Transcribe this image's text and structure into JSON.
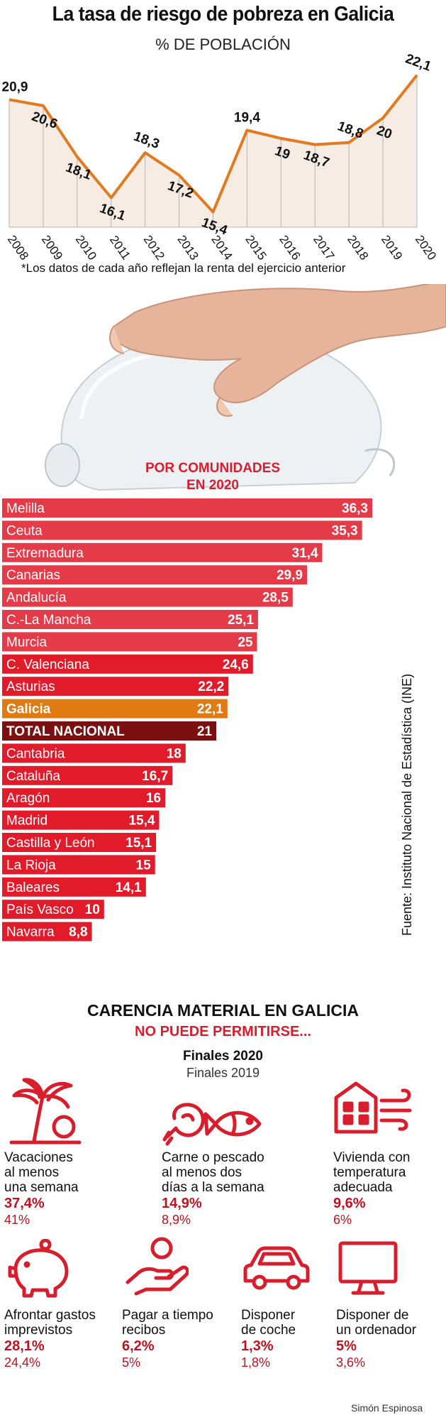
{
  "header": {
    "title": "La tasa de riesgo de pobreza en Galicia",
    "subtitle": "% DE POBLACIÓN",
    "note": "*Los datos de cada año reflejan la renta del ejercicio anterior"
  },
  "chart_data": [
    {
      "type": "line",
      "title": "La tasa de riesgo de pobreza en Galicia",
      "subtitle": "% DE POBLACIÓN",
      "x": [
        "2008",
        "2009",
        "2010",
        "2011",
        "2012",
        "2013",
        "2014",
        "2015",
        "2016",
        "2017",
        "2018",
        "2019",
        "2020"
      ],
      "values": [
        20.9,
        20.6,
        18.1,
        16.1,
        18.3,
        17.2,
        15.4,
        19.4,
        19,
        18.7,
        18.8,
        20,
        22.1
      ],
      "value_labels": [
        "20,9",
        "20,6",
        "18,1",
        "16,1",
        "18,3",
        "17,2",
        "15,4",
        "19,4",
        "19",
        "18,7",
        "18,8",
        "20",
        "22,1"
      ],
      "color": "#e27a1f"
    },
    {
      "type": "bar",
      "title": "POR COMUNIDADES EN 2020",
      "title_lines": [
        "POR COMUNIDADES",
        "EN 2020"
      ],
      "categories": [
        "Melilla",
        "Ceuta",
        "Extremadura",
        "Canarias",
        "Andalucía",
        "C.-La Mancha",
        "Murcia",
        "C. Valenciana",
        "Asturias",
        "Galicia",
        "TOTAL NACIONAL",
        "Cantabria",
        "Cataluña",
        "Aragón",
        "Madrid",
        "Castilla y León",
        "La Rioja",
        "Baleares",
        "País Vasco",
        "Navarra"
      ],
      "values": [
        36.3,
        35.3,
        31.4,
        29.9,
        28.5,
        25.1,
        25,
        24.6,
        22.2,
        22.1,
        21,
        18,
        16.7,
        16,
        15.4,
        15.1,
        15,
        14.1,
        10,
        8.8
      ],
      "value_labels": [
        "36,3",
        "35,3",
        "31,4",
        "29,9",
        "28,5",
        "25,1",
        "25",
        "24,6",
        "22,2",
        "22,1",
        "21",
        "18",
        "16,7",
        "16",
        "15,4",
        "15,1",
        "15",
        "14,1",
        "10",
        "8,8"
      ],
      "colors": {
        "default": "#e11b2a",
        "highlight": "#e07a12",
        "total": "#7a1010"
      },
      "highlight_category": "Galicia",
      "total_category": "TOTAL NACIONAL",
      "xlim": [
        0,
        36.3
      ]
    }
  ],
  "source": "Fuente: Instituto Nacional de Estadística (INE)",
  "material": {
    "title": "CARENCIA MATERIAL EN GALICIA",
    "subtitle": "NO PUEDE PERMITIRSE...",
    "legend_2020": "Finales 2020",
    "legend_2019": "Finales 2019",
    "items": [
      {
        "label_lines": [
          "Vacaciones",
          "al menos",
          "una semana"
        ],
        "v2020": "37,4%",
        "v2019": "41%",
        "icon": "beach-palm-icon"
      },
      {
        "label_lines": [
          "Carne o pescado",
          "al menos dos",
          "días a la semana"
        ],
        "v2020": "14,9%",
        "v2019": "8,9%",
        "icon": "meat-fish-icon"
      },
      {
        "label_lines": [
          "Vivienda con",
          "temperatura",
          "adecuada"
        ],
        "v2020": "9,6%",
        "v2019": "6%",
        "icon": "house-wind-icon"
      },
      {
        "label_lines": [
          "Afrontar gastos",
          "imprevistos"
        ],
        "v2020": "28,1%",
        "v2019": "24,4%",
        "icon": "piggy-bank-icon"
      },
      {
        "label_lines": [
          "Pagar a tiempo",
          "recibos"
        ],
        "v2020": "6,2%",
        "v2019": "5%",
        "icon": "coin-hand-icon"
      },
      {
        "label_lines": [
          "Disponer",
          "de coche"
        ],
        "v2020": "1,3%",
        "v2019": "1,8%",
        "icon": "car-icon"
      },
      {
        "label_lines": [
          "Disponer de",
          "un ordenador"
        ],
        "v2020": "5%",
        "v2019": "3,6%",
        "icon": "computer-icon"
      }
    ],
    "accent": "#d81e2c"
  },
  "credit": "Simón Espinosa"
}
